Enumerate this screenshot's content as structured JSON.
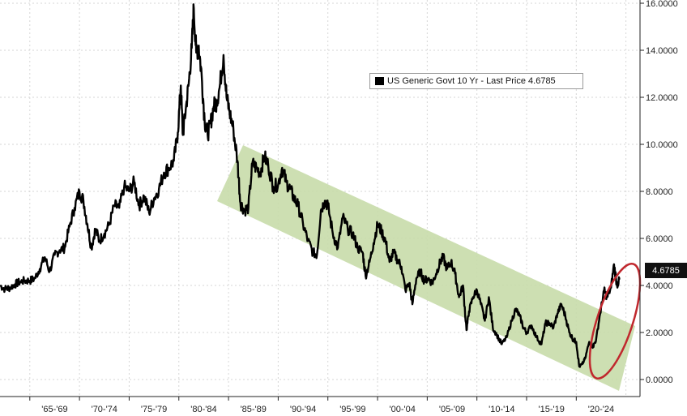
{
  "chart_data": {
    "type": "line",
    "series": [
      {
        "name": "US Generic Govt 10 Yr - Last Price",
        "color": "#000000",
        "x": [
          1962.0,
          1962.5,
          1963.0,
          1963.5,
          1964.0,
          1964.5,
          1965.0,
          1965.5,
          1966.0,
          1966.5,
          1967.0,
          1967.5,
          1968.0,
          1968.5,
          1969.0,
          1969.5,
          1970.0,
          1970.4,
          1970.8,
          1971.2,
          1971.6,
          1972.0,
          1972.5,
          1973.0,
          1973.5,
          1974.0,
          1974.5,
          1975.0,
          1975.5,
          1976.0,
          1976.5,
          1977.0,
          1977.5,
          1978.0,
          1978.5,
          1979.0,
          1979.5,
          1979.9,
          1980.2,
          1980.4,
          1980.7,
          1981.0,
          1981.3,
          1981.5,
          1981.75,
          1982.0,
          1982.3,
          1982.6,
          1982.9,
          1983.2,
          1983.5,
          1983.8,
          1984.1,
          1984.5,
          1984.8,
          1985.1,
          1985.5,
          1985.9,
          1986.2,
          1986.6,
          1987.0,
          1987.4,
          1987.8,
          1988.2,
          1988.6,
          1989.0,
          1989.5,
          1990.0,
          1990.4,
          1990.8,
          1991.2,
          1991.6,
          1992.0,
          1992.5,
          1993.0,
          1993.5,
          1993.9,
          1994.3,
          1994.7,
          1995.0,
          1995.5,
          1996.0,
          1996.5,
          1997.0,
          1997.5,
          1998.0,
          1998.5,
          1998.8,
          1999.2,
          1999.6,
          2000.0,
          2000.4,
          2000.8,
          2001.2,
          2001.6,
          2002.0,
          2002.4,
          2002.8,
          2003.2,
          2003.5,
          2003.9,
          2004.3,
          2004.7,
          2005.1,
          2005.5,
          2005.9,
          2006.3,
          2006.6,
          2007.0,
          2007.4,
          2007.8,
          2008.2,
          2008.6,
          2008.95,
          2009.2,
          2009.6,
          2010.0,
          2010.4,
          2010.8,
          2011.2,
          2011.6,
          2012.0,
          2012.5,
          2013.0,
          2013.5,
          2013.9,
          2014.3,
          2014.7,
          2015.0,
          2015.5,
          2016.0,
          2016.5,
          2016.9,
          2017.3,
          2017.7,
          2018.1,
          2018.5,
          2018.9,
          2019.3,
          2019.7,
          2020.0,
          2020.3,
          2020.6,
          2020.9,
          2021.3,
          2021.7,
          2022.0,
          2022.4,
          2022.8,
          2023.1,
          2023.5,
          2023.8,
          2024.1,
          2024.4
        ],
        "values": [
          4.0,
          3.85,
          3.9,
          4.05,
          4.15,
          4.2,
          4.2,
          4.3,
          4.7,
          5.2,
          4.6,
          5.3,
          5.5,
          5.6,
          6.5,
          7.3,
          8.0,
          7.6,
          6.6,
          5.6,
          6.4,
          5.9,
          6.2,
          6.6,
          7.4,
          7.3,
          8.2,
          8.0,
          8.4,
          7.4,
          7.8,
          7.1,
          7.7,
          8.1,
          8.8,
          9.0,
          9.3,
          10.5,
          12.5,
          10.4,
          11.5,
          12.6,
          14.1,
          15.8,
          13.9,
          14.2,
          12.9,
          11.0,
          10.4,
          10.9,
          11.6,
          11.8,
          12.4,
          13.8,
          12.0,
          11.4,
          10.6,
          9.3,
          7.5,
          7.2,
          7.3,
          9.2,
          9.0,
          8.8,
          9.5,
          9.1,
          8.2,
          8.3,
          9.0,
          8.4,
          8.1,
          7.7,
          7.4,
          6.6,
          5.9,
          5.4,
          5.3,
          7.2,
          7.6,
          7.4,
          6.2,
          5.6,
          6.9,
          6.4,
          6.2,
          5.6,
          5.4,
          4.4,
          5.0,
          5.8,
          6.6,
          6.3,
          5.9,
          5.0,
          5.4,
          5.1,
          4.8,
          3.8,
          4.1,
          3.2,
          4.3,
          4.6,
          4.2,
          4.3,
          4.1,
          4.5,
          5.0,
          5.2,
          4.7,
          5.0,
          4.5,
          3.5,
          4.0,
          2.1,
          2.9,
          3.5,
          3.8,
          3.2,
          2.5,
          3.5,
          2.2,
          1.9,
          1.5,
          1.8,
          2.5,
          3.0,
          2.7,
          2.2,
          2.0,
          2.3,
          1.8,
          1.5,
          2.4,
          2.4,
          2.2,
          2.8,
          3.2,
          2.7,
          2.0,
          1.7,
          1.6,
          0.55,
          0.65,
          0.9,
          1.6,
          1.4,
          1.7,
          2.8,
          3.8,
          3.5,
          3.9,
          4.9,
          4.0,
          4.3
        ]
      }
    ],
    "x_ticks": [
      "'65-'69",
      "'70-'74",
      "'75-'79",
      "'80-'84",
      "'85-'89",
      "'90-'94",
      "'95-'99",
      "'00-'04",
      "'05-'09",
      "'10-'14",
      "'15-'19",
      "'20-'24"
    ],
    "y_ticks": [
      "16.0000",
      "14.0000",
      "12.0000",
      "10.0000",
      "8.0000",
      "6.0000",
      "4.0000",
      "2.0000",
      "0.0000"
    ],
    "ylim": [
      -0.2,
      16.2
    ],
    "xlim": [
      1962,
      2025.6
    ],
    "last_price_label": "4.6785",
    "legend": "US Generic Govt 10 Yr - Last Price 4.6785",
    "channel_color": "#c8dcaa",
    "highlight_color": "#c0282e",
    "grid": true
  }
}
